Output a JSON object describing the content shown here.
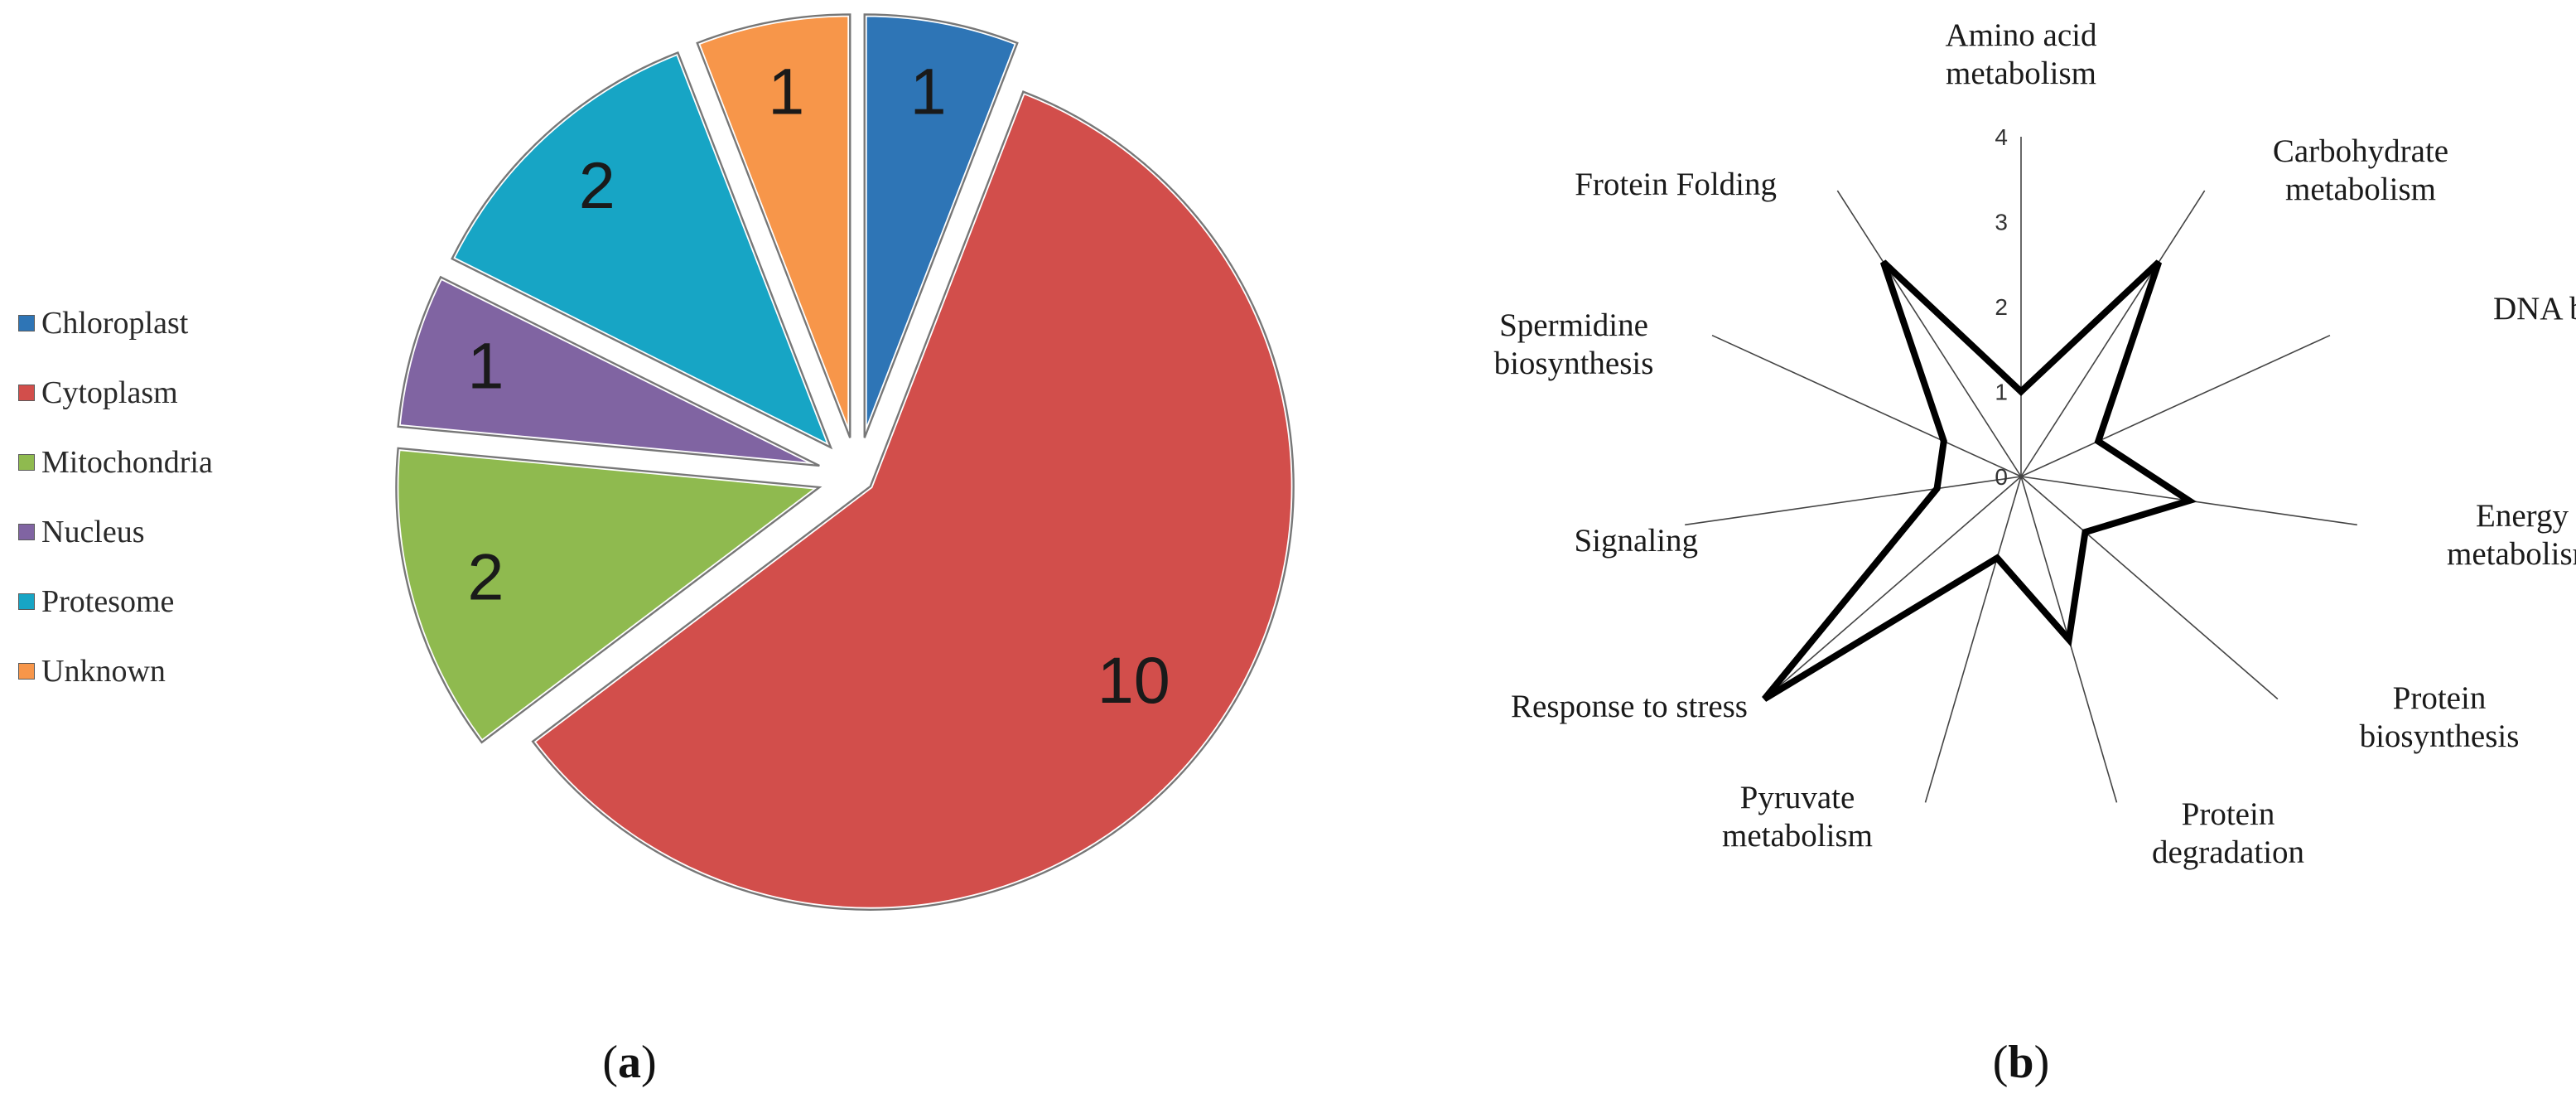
{
  "chart_data": [
    {
      "type": "pie",
      "panel": "(a)",
      "slices": [
        {
          "label": "Chloroplast",
          "value": 1,
          "color": "#2e75b6"
        },
        {
          "label": "Cytoplasm",
          "value": 10,
          "color": "#d24e4b"
        },
        {
          "label": "Mitochondria",
          "value": 2,
          "color": "#8fba4f"
        },
        {
          "label": "Nucleus",
          "value": 1,
          "color": "#8064a2"
        },
        {
          "label": "Protesome",
          "value": 2,
          "color": "#17a5c5"
        },
        {
          "label": "Unknown",
          "value": 1,
          "color": "#f7964a"
        }
      ],
      "legend_position": "left"
    },
    {
      "type": "radar",
      "panel": "(b)",
      "axes": [
        "Amino acid metabolism",
        "Carbohydrate metabolism",
        "DNA binding",
        "Energy metabolism",
        "Protein biosynthesis",
        "Protein degradation",
        "Pyruvate metabolism",
        "Response to stress",
        "Signaling",
        "Spermidine biosynthesis",
        "Frotein Folding"
      ],
      "values": [
        1,
        3,
        1,
        2,
        1,
        2,
        1,
        4,
        1,
        1,
        3
      ],
      "r_ticks": [
        "0",
        "1",
        "2",
        "3",
        "4"
      ],
      "r_range": [
        0,
        4
      ],
      "line_color": "#000000"
    }
  ]
}
